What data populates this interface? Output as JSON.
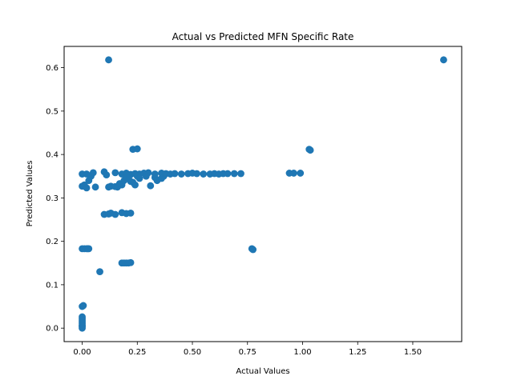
{
  "chart_data": {
    "type": "scatter",
    "title": "Actual vs Predicted MFN Specific Rate",
    "xlabel": "Actual Values",
    "ylabel": "Predicted Values",
    "xlim": [
      -0.082,
      1.722
    ],
    "ylim": [
      -0.031,
      0.649
    ],
    "x_ticks": [
      0.0,
      0.25,
      0.5,
      0.75,
      1.0,
      1.25,
      1.5
    ],
    "x_tick_labels": [
      "0.00",
      "0.25",
      "0.50",
      "0.75",
      "1.00",
      "1.25",
      "1.50"
    ],
    "y_ticks": [
      0.0,
      0.1,
      0.2,
      0.3,
      0.4,
      0.5,
      0.6
    ],
    "y_tick_labels": [
      "0.0",
      "0.1",
      "0.2",
      "0.3",
      "0.4",
      "0.5",
      "0.6"
    ],
    "grid": false,
    "marker_color": "#1f77b4",
    "series": [
      {
        "points": [
          [
            0.0,
            0.0
          ],
          [
            0.0,
            0.003
          ],
          [
            0.0,
            0.006
          ],
          [
            0.0,
            0.01
          ],
          [
            0.0,
            0.014
          ],
          [
            0.0,
            0.018
          ],
          [
            0.0,
            0.022
          ],
          [
            0.0,
            0.026
          ],
          [
            0.0,
            0.05
          ],
          [
            0.005,
            0.052
          ],
          [
            0.0,
            0.005
          ],
          [
            0.0,
            0.183
          ],
          [
            0.01,
            0.183
          ],
          [
            0.02,
            0.183
          ],
          [
            0.025,
            0.183
          ],
          [
            0.03,
            0.183
          ],
          [
            0.0,
            0.327
          ],
          [
            0.01,
            0.33
          ],
          [
            0.02,
            0.323
          ],
          [
            0.03,
            0.34
          ],
          [
            0.06,
            0.325
          ],
          [
            0.0,
            0.355
          ],
          [
            0.02,
            0.355
          ],
          [
            0.04,
            0.35
          ],
          [
            0.05,
            0.358
          ],
          [
            0.1,
            0.36
          ],
          [
            0.11,
            0.353
          ],
          [
            0.12,
            0.325
          ],
          [
            0.13,
            0.327
          ],
          [
            0.15,
            0.326
          ],
          [
            0.16,
            0.325
          ],
          [
            0.18,
            0.33
          ],
          [
            0.17,
            0.333
          ],
          [
            0.15,
            0.358
          ],
          [
            0.18,
            0.355
          ],
          [
            0.2,
            0.357
          ],
          [
            0.22,
            0.354
          ],
          [
            0.24,
            0.356
          ],
          [
            0.26,
            0.355
          ],
          [
            0.28,
            0.357
          ],
          [
            0.3,
            0.358
          ],
          [
            0.19,
            0.34
          ],
          [
            0.21,
            0.345
          ],
          [
            0.23,
            0.336
          ],
          [
            0.25,
            0.35
          ],
          [
            0.24,
            0.33
          ],
          [
            0.22,
            0.338
          ],
          [
            0.2,
            0.348
          ],
          [
            0.26,
            0.345
          ],
          [
            0.29,
            0.35
          ],
          [
            0.31,
            0.328
          ],
          [
            0.33,
            0.347
          ],
          [
            0.34,
            0.34
          ],
          [
            0.36,
            0.345
          ],
          [
            0.37,
            0.35
          ],
          [
            0.1,
            0.262
          ],
          [
            0.12,
            0.263
          ],
          [
            0.13,
            0.265
          ],
          [
            0.15,
            0.262
          ],
          [
            0.18,
            0.266
          ],
          [
            0.2,
            0.264
          ],
          [
            0.22,
            0.265
          ],
          [
            0.18,
            0.15
          ],
          [
            0.19,
            0.15
          ],
          [
            0.2,
            0.15
          ],
          [
            0.21,
            0.15
          ],
          [
            0.22,
            0.151
          ],
          [
            0.08,
            0.13
          ],
          [
            0.23,
            0.412
          ],
          [
            0.25,
            0.413
          ],
          [
            0.12,
            0.618
          ],
          [
            0.33,
            0.355
          ],
          [
            0.36,
            0.357
          ],
          [
            0.38,
            0.356
          ],
          [
            0.4,
            0.355
          ],
          [
            0.42,
            0.356
          ],
          [
            0.45,
            0.355
          ],
          [
            0.48,
            0.356
          ],
          [
            0.5,
            0.357
          ],
          [
            0.52,
            0.356
          ],
          [
            0.55,
            0.355
          ],
          [
            0.58,
            0.355
          ],
          [
            0.6,
            0.356
          ],
          [
            0.62,
            0.355
          ],
          [
            0.64,
            0.356
          ],
          [
            0.66,
            0.356
          ],
          [
            0.69,
            0.356
          ],
          [
            0.72,
            0.356
          ],
          [
            0.77,
            0.183
          ],
          [
            0.775,
            0.181
          ],
          [
            0.94,
            0.357
          ],
          [
            0.96,
            0.357
          ],
          [
            0.99,
            0.357
          ],
          [
            1.03,
            0.412
          ],
          [
            1.035,
            0.41
          ],
          [
            1.64,
            0.618
          ]
        ]
      }
    ]
  }
}
